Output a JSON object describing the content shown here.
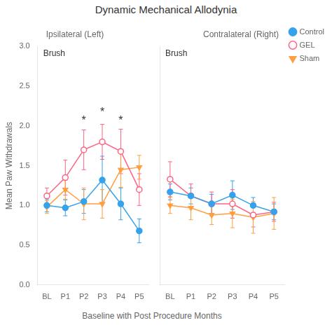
{
  "title": "Dynamic Mechanical Allodynia",
  "xlabel": "Baseline with Post Procedure Months",
  "chart_data": [
    {
      "type": "line",
      "subtitle": "Ipsilateral (Left)",
      "ylabel": "Mean Paw Withdrawals",
      "categories": [
        "BL",
        "P1",
        "P2",
        "P3",
        "P4",
        "P5"
      ],
      "series": [
        {
          "name": "Control",
          "marker": "circle",
          "values": [
            1.0,
            0.97,
            1.05,
            1.32,
            1.02,
            0.68
          ],
          "errors": [
            0.08,
            0.1,
            0.15,
            0.3,
            0.2,
            0.15
          ]
        },
        {
          "name": "GEL",
          "marker": "circle_open",
          "values": [
            1.12,
            1.35,
            1.7,
            1.8,
            1.68,
            1.2
          ],
          "errors": [
            0.1,
            0.22,
            0.25,
            0.22,
            0.28,
            0.2
          ]
        },
        {
          "name": "Sham",
          "marker": "triangle_down",
          "values": [
            0.98,
            1.2,
            1.02,
            1.02,
            1.45,
            1.48
          ],
          "errors": [
            0.08,
            0.12,
            0.2,
            0.18,
            0.22,
            0.15
          ]
        }
      ],
      "annotations": [
        {
          "text": "Brush"
        },
        {
          "text": "*",
          "x": "P2",
          "y": 2.05
        },
        {
          "text": "*",
          "x": "P3",
          "y": 2.15
        },
        {
          "text": "*",
          "x": "P4",
          "y": 2.05
        }
      ],
      "ylim": [
        0.0,
        3.0
      ],
      "yticks": [
        {
          "value": 0,
          "label": "0.0"
        },
        0.5,
        {
          "value": 1,
          "label": "1.0"
        },
        1.5,
        {
          "value": 2,
          "label": "2.0"
        },
        2.5,
        {
          "value": 3,
          "label": "3.0"
        }
      ],
      "grid": false
    },
    {
      "type": "line",
      "subtitle": "Contralateral (Right)",
      "categories": [
        "BL",
        "P1",
        "P2",
        "P3",
        "P4",
        "P5"
      ],
      "series": [
        {
          "name": "Control",
          "marker": "circle",
          "values": [
            1.17,
            1.12,
            1.02,
            1.13,
            1.0,
            0.92
          ],
          "errors": [
            0.1,
            0.1,
            0.12,
            0.18,
            0.1,
            0.1
          ]
        },
        {
          "name": "GEL",
          "marker": "circle_open",
          "values": [
            1.33,
            1.12,
            1.02,
            1.02,
            0.88,
            0.92
          ],
          "errors": [
            0.22,
            0.15,
            0.15,
            0.18,
            0.15,
            0.12
          ]
        },
        {
          "name": "Sham",
          "marker": "triangle_down",
          "values": [
            1.0,
            0.97,
            0.88,
            0.9,
            0.85,
            0.9
          ],
          "errors": [
            0.1,
            0.15,
            0.12,
            0.18,
            0.2,
            0.2
          ]
        }
      ],
      "annotations": [
        {
          "text": "Brush"
        }
      ],
      "ylim": [
        0.0,
        3.0
      ],
      "yticks": [
        {
          "value": 0,
          "label": "0.0"
        },
        0.5,
        {
          "value": 1,
          "label": "1.0"
        },
        1.5,
        {
          "value": 2,
          "label": "2.0"
        },
        2.5,
        {
          "value": 3,
          "label": "3.0"
        }
      ],
      "tick_labels": "x",
      "legend": "right",
      "grid": false
    }
  ]
}
